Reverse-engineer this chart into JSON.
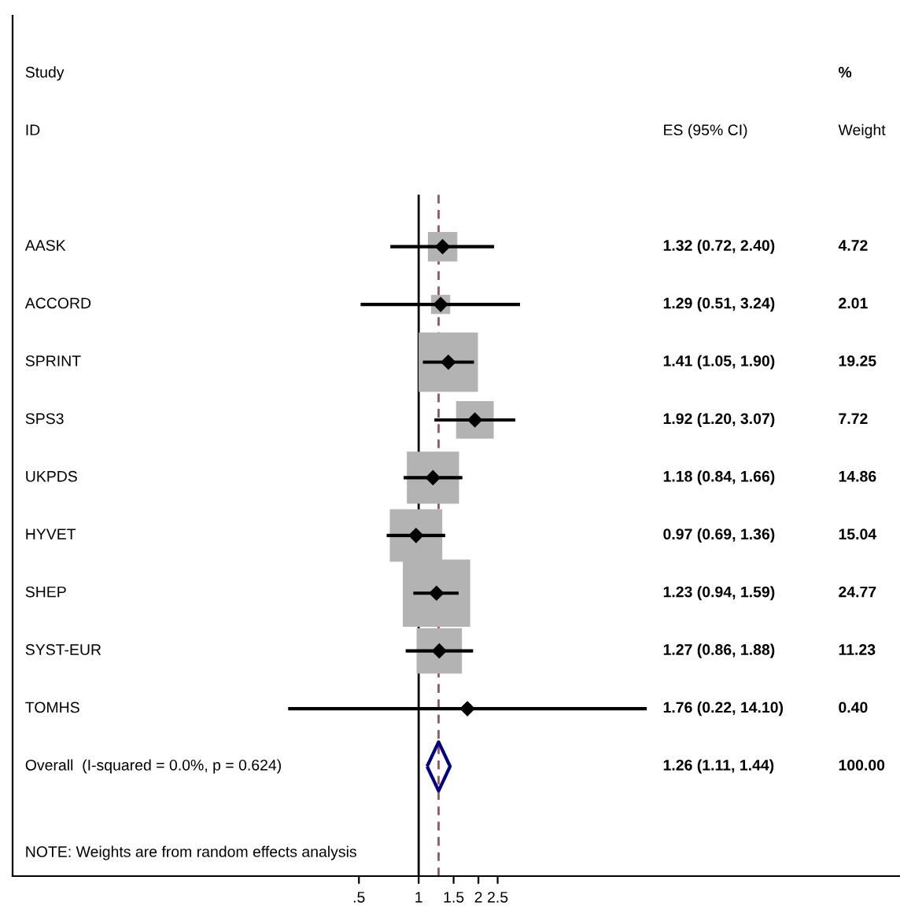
{
  "chart_data": [
    {
      "type": "scatter",
      "orientation": "horizontal",
      "categories": [
        "AASK",
        "ACCORD",
        "SPRINT",
        "SPS3",
        "UKPDS",
        "HYVET",
        "SHEP",
        "SYST-EUR",
        "TOMHS",
        "Overall  (I-squared = 0.0%, p = 0.624)"
      ],
      "annotations": [
        "Study",
        "ID",
        "NOTE: Weights are from random effects analysis"
      ],
      "series": [
        {
          "type": "bubble",
          "marker": "square",
          "color": "#b3b3b3",
          "values": [
            1.32,
            1.29,
            1.41,
            1.92,
            1.18,
            0.97,
            1.23,
            1.27,
            1.76,
            null
          ],
          "sizes": [
            0.191,
            0.081,
            0.777,
            0.312,
            0.6,
            0.607,
            1,
            0.453,
            0.016,
            null
          ]
        },
        {
          "type": "scatter",
          "marker": "diamond",
          "color": "#000000",
          "values": [
            1.32,
            1.29,
            1.41,
            1.92,
            1.18,
            0.97,
            1.23,
            1.27,
            1.76,
            null
          ],
          "errors": [
            [
              0.72,
              2.4
            ],
            [
              0.51,
              3.24
            ],
            [
              1.05,
              1.9
            ],
            [
              1.2,
              3.07
            ],
            [
              0.84,
              1.66
            ],
            [
              0.69,
              1.36
            ],
            [
              0.94,
              1.59
            ],
            [
              0.86,
              1.88
            ],
            [
              0.22,
              14.1
            ],
            null
          ]
        },
        {
          "type": "scatter",
          "marker": "diamond",
          "color": "#000080",
          "values": [
            null,
            null,
            null,
            null,
            null,
            null,
            null,
            null,
            null,
            1.26
          ]
        }
      ],
      "log": "x",
      "xlim": [
        0.009,
        266
      ],
      "xticks": [
        {
          "value": 0.5,
          "label": ".5"
        },
        1,
        1.5,
        2,
        2.5
      ],
      "ref_lines": [
        {
          "axis": "x",
          "value": 1,
          "color": "#000000",
          "line_style": "solid"
        },
        {
          "axis": "x",
          "value": 1.26,
          "color": "#a0525a",
          "line_style": "dashed"
        }
      ],
      "grid": false,
      "tick_labels": "x"
    },
    {
      "type": "other",
      "annotations": [
        "ES (95% CI)",
        "%",
        "Weight",
        "1.32 (0.72, 2.40)",
        "4.72",
        "1.29 (0.51, 3.24)",
        "2.01",
        "1.41 (1.05, 1.90)",
        "19.25",
        "1.92 (1.20, 3.07)",
        "7.72",
        "1.18 (0.84, 1.66)",
        "14.86",
        "0.97 (0.69, 1.36)",
        "15.04",
        "1.23 (0.94, 1.59)",
        "24.77",
        "1.27 (0.86, 1.88)",
        "11.23",
        "1.76 (0.22, 14.10)",
        "0.40",
        "1.26 (1.11, 1.44)",
        "100.00"
      ]
    }
  ]
}
